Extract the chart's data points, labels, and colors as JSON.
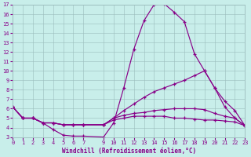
{
  "xlabel": "Windchill (Refroidissement éolien,°C)",
  "bg_color": "#c8eeea",
  "line_color": "#880088",
  "grid_color": "#9bbcbc",
  "xlim": [
    0,
    23
  ],
  "ylim": [
    3,
    17
  ],
  "xticks": [
    0,
    1,
    2,
    3,
    4,
    5,
    6,
    7,
    9,
    10,
    11,
    12,
    13,
    14,
    15,
    16,
    17,
    18,
    19,
    20,
    21,
    22,
    23
  ],
  "yticks": [
    3,
    4,
    5,
    6,
    7,
    8,
    9,
    10,
    11,
    12,
    13,
    14,
    15,
    16,
    17
  ],
  "lines": [
    {
      "x": [
        0,
        1,
        2,
        3,
        4,
        5,
        6,
        7,
        9,
        10,
        11,
        12,
        13,
        14,
        15,
        16,
        17,
        18,
        19,
        20,
        21,
        22,
        23
      ],
      "y": [
        6.2,
        5.0,
        5.0,
        4.5,
        3.8,
        3.2,
        3.1,
        3.1,
        3.0,
        4.5,
        8.2,
        12.3,
        15.3,
        17.0,
        17.1,
        16.2,
        15.2,
        11.8,
        10.0,
        8.2,
        6.2,
        5.0,
        4.2
      ]
    },
    {
      "x": [
        0,
        1,
        2,
        3,
        4,
        5,
        6,
        7,
        9,
        10,
        11,
        12,
        13,
        14,
        15,
        16,
        17,
        18,
        19,
        20,
        21,
        22,
        23
      ],
      "y": [
        6.2,
        5.0,
        5.0,
        4.5,
        4.5,
        4.3,
        4.3,
        4.3,
        4.3,
        5.0,
        5.8,
        6.5,
        7.2,
        7.8,
        8.2,
        8.6,
        9.0,
        9.5,
        10.0,
        8.2,
        6.8,
        5.8,
        4.2
      ]
    },
    {
      "x": [
        0,
        1,
        2,
        3,
        4,
        5,
        6,
        7,
        9,
        10,
        11,
        12,
        13,
        14,
        15,
        16,
        17,
        18,
        19,
        20,
        21,
        22,
        23
      ],
      "y": [
        6.2,
        5.0,
        5.0,
        4.5,
        4.5,
        4.3,
        4.3,
        4.3,
        4.3,
        5.0,
        5.3,
        5.5,
        5.6,
        5.8,
        5.9,
        6.0,
        6.0,
        6.0,
        5.9,
        5.5,
        5.2,
        5.0,
        4.2
      ]
    },
    {
      "x": [
        0,
        1,
        2,
        3,
        4,
        5,
        6,
        7,
        9,
        10,
        11,
        12,
        13,
        14,
        15,
        16,
        17,
        18,
        19,
        20,
        21,
        22,
        23
      ],
      "y": [
        6.2,
        5.0,
        5.0,
        4.5,
        4.5,
        4.3,
        4.3,
        4.3,
        4.3,
        4.8,
        5.0,
        5.2,
        5.2,
        5.2,
        5.2,
        5.0,
        5.0,
        4.9,
        4.8,
        4.8,
        4.7,
        4.6,
        4.2
      ]
    }
  ],
  "tick_fontsize": 5.0,
  "xlabel_fontsize": 5.5,
  "linewidth": 0.85,
  "markersize": 3.0
}
